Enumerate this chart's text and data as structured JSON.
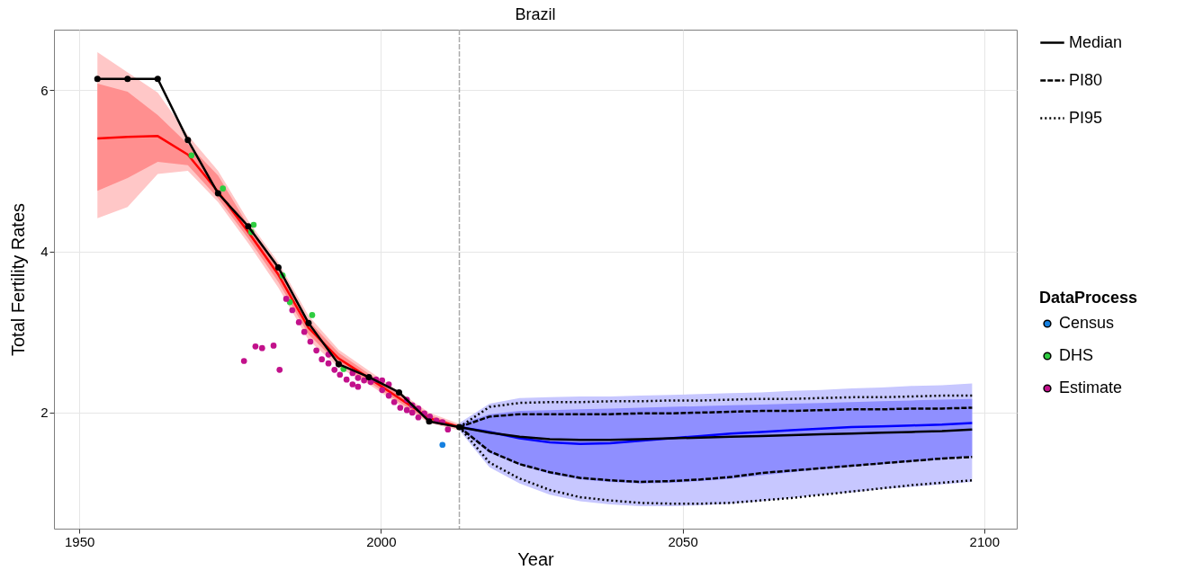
{
  "chart_data": {
    "type": "line",
    "title": "Brazil",
    "xlabel": "Year",
    "ylabel": "Total Fertility Rates",
    "legend_title": "DataProcess",
    "xlim": [
      1945.8,
      2105.4
    ],
    "xticks": [
      1950,
      2000,
      2050,
      2100
    ],
    "ylim": [
      0.56,
      6.75
    ],
    "yticks": [
      2,
      4,
      6
    ],
    "grid": true,
    "legend": "right",
    "ref_lines": [
      {
        "axis": "x",
        "value": 2013,
        "color": "#aaaaaa",
        "line_style": "dashed"
      }
    ],
    "series": [
      {
        "color": "#ff0000",
        "x": [
          1953,
          1958,
          1963,
          1968,
          1973,
          1978,
          1983,
          1988,
          1993,
          1998,
          2003,
          2008,
          2013
        ],
        "values": [
          null,
          null,
          null,
          null,
          null,
          null,
          null,
          null,
          null,
          null,
          null,
          null,
          null
        ],
        "lower": [
          4.41,
          4.55,
          4.96,
          5.0,
          4.61,
          4.1,
          3.55,
          2.9,
          2.56,
          2.35,
          2.1,
          1.87,
          1.78
        ],
        "upper": [
          6.47,
          6.22,
          5.97,
          5.44,
          5.0,
          4.38,
          3.86,
          3.2,
          2.78,
          2.52,
          2.26,
          2.0,
          1.86
        ]
      },
      {
        "color": "#ff0000",
        "x": [
          1953,
          1958,
          1963,
          1968,
          1973,
          1978,
          1983,
          1988,
          1993,
          1998,
          2003,
          2008,
          2013
        ],
        "values": [
          5.4,
          5.42,
          5.43,
          5.2,
          4.74,
          4.24,
          3.71,
          3.05,
          2.67,
          2.43,
          2.18,
          1.93,
          1.82
        ],
        "lower": [
          4.75,
          4.91,
          5.11,
          5.07,
          4.66,
          4.16,
          3.62,
          2.97,
          2.6,
          2.38,
          2.13,
          1.89,
          1.8
        ],
        "upper": [
          6.08,
          5.98,
          5.69,
          5.33,
          4.94,
          4.32,
          3.79,
          3.14,
          2.74,
          2.48,
          2.23,
          1.97,
          1.84
        ]
      },
      {
        "color": "#0000ff",
        "x": [
          2013,
          2018,
          2023,
          2028,
          2033,
          2038,
          2043,
          2048,
          2053,
          2058,
          2063,
          2068,
          2073,
          2078,
          2083,
          2088,
          2093,
          2098
        ],
        "values": [
          null,
          null,
          null,
          null,
          null,
          null,
          null,
          null,
          null,
          null,
          null,
          null,
          null,
          null,
          null,
          null,
          null,
          null
        ],
        "lower": [
          1.78,
          1.32,
          1.12,
          0.98,
          0.9,
          0.86,
          0.84,
          0.84,
          0.85,
          0.87,
          0.9,
          0.94,
          0.98,
          1.01,
          1.05,
          1.08,
          1.11,
          1.14
        ],
        "upper": [
          1.87,
          2.11,
          2.18,
          2.19,
          2.2,
          2.2,
          2.21,
          2.22,
          2.23,
          2.24,
          2.25,
          2.27,
          2.28,
          2.3,
          2.31,
          2.33,
          2.34,
          2.36
        ]
      },
      {
        "color": "#0000ff",
        "x": [
          2013,
          2018,
          2023,
          2028,
          2033,
          2038,
          2043,
          2048,
          2053,
          2058,
          2063,
          2068,
          2073,
          2078,
          2083,
          2088,
          2093,
          2098
        ],
        "values": [
          1.82,
          1.76,
          1.68,
          1.63,
          1.61,
          1.62,
          1.65,
          1.68,
          1.71,
          1.74,
          1.76,
          1.78,
          1.8,
          1.82,
          1.83,
          1.84,
          1.85,
          1.87
        ],
        "lower": [
          1.8,
          1.5,
          1.35,
          1.24,
          1.17,
          1.14,
          1.12,
          1.13,
          1.15,
          1.18,
          1.22,
          1.26,
          1.3,
          1.33,
          1.36,
          1.39,
          1.42,
          1.46
        ],
        "upper": [
          1.85,
          1.98,
          2.02,
          2.03,
          2.04,
          2.05,
          2.06,
          2.07,
          2.08,
          2.09,
          2.1,
          2.11,
          2.12,
          2.13,
          2.14,
          2.15,
          2.16,
          2.17
        ]
      },
      {
        "type": "scatter",
        "name": "Census",
        "color": "#1580e0",
        "x": [
          2010.2
        ],
        "values": [
          1.6
        ]
      },
      {
        "type": "scatter",
        "name": "DHS",
        "color": "#2ecc40",
        "x": [
          1968.6,
          1973.8,
          1978.9,
          1978.5,
          1983.7,
          1984.9,
          1988.6,
          1993.8
        ],
        "values": [
          5.19,
          4.78,
          4.33,
          4.24,
          3.7,
          3.37,
          3.21,
          2.54
        ]
      },
      {
        "type": "scatter",
        "name": "Estimate",
        "color": "#c2118b",
        "x": [
          1977.3,
          1979.2,
          1980.3,
          1982.2,
          1983.2,
          1984.3,
          1985.3,
          1986.4,
          1987.3,
          1988.3,
          1989.3,
          1990.2,
          1991.3,
          1991.3,
          1992.3,
          1993.2,
          1994.3,
          1995.3,
          1996.2,
          1995.3,
          1996.2,
          1997.2,
          1998.3,
          1999.2,
          2000.2,
          2001.3,
          2000.2,
          2001.3,
          2002.2,
          2003.2,
          2004.3,
          2004.3,
          2005.2,
          2005.2,
          2006.2,
          2006.2,
          2007.2,
          2008.1,
          2009.2,
          2010.2,
          2011.1
        ],
        "values": [
          2.64,
          2.82,
          2.8,
          2.83,
          2.53,
          3.41,
          3.27,
          3.12,
          3.0,
          2.88,
          2.77,
          2.66,
          2.72,
          2.61,
          2.53,
          2.47,
          2.41,
          2.35,
          2.32,
          2.49,
          2.43,
          2.4,
          2.38,
          2.41,
          2.4,
          2.35,
          2.28,
          2.21,
          2.13,
          2.06,
          2.16,
          2.03,
          2.09,
          2.0,
          2.05,
          1.94,
          1.99,
          1.95,
          1.9,
          1.88,
          1.79
        ]
      },
      {
        "color": "#000000",
        "marker": "circle",
        "x": [
          1953,
          1958,
          1963,
          1968,
          1973,
          1978,
          1983,
          1988,
          1993,
          1998,
          2003,
          2008,
          2013
        ],
        "values": [
          6.14,
          6.14,
          6.14,
          5.38,
          4.72,
          4.31,
          3.8,
          3.11,
          2.6,
          2.44,
          2.25,
          1.89,
          1.82
        ]
      },
      {
        "name": "Median",
        "color": "#000000",
        "line_style": "solid",
        "x": [
          2013,
          2018,
          2023,
          2028,
          2033,
          2038,
          2043,
          2048,
          2053,
          2058,
          2063,
          2068,
          2073,
          2078,
          2083,
          2088,
          2093,
          2098
        ],
        "values": [
          1.82,
          1.75,
          1.7,
          1.67,
          1.66,
          1.66,
          1.67,
          1.68,
          1.69,
          1.7,
          1.71,
          1.72,
          1.73,
          1.74,
          1.75,
          1.76,
          1.77,
          1.79
        ]
      },
      {
        "name": "PI80",
        "color": "#000000",
        "line_style": "dashed",
        "x": [
          2013,
          2018,
          2023,
          2028,
          2033,
          2038,
          2043,
          2048,
          2053,
          2058,
          2063,
          2068,
          2073,
          2078,
          2083,
          2088,
          2093,
          2098
        ],
        "values": [
          1.82,
          1.95,
          1.98,
          1.98,
          1.98,
          1.98,
          1.99,
          1.99,
          2.0,
          2.01,
          2.02,
          2.02,
          2.03,
          2.04,
          2.04,
          2.05,
          2.05,
          2.06
        ]
      },
      {
        "color": "#000000",
        "line_style": "dashed",
        "x": [
          2013,
          2018,
          2023,
          2028,
          2033,
          2038,
          2043,
          2048,
          2053,
          2058,
          2063,
          2068,
          2073,
          2078,
          2083,
          2088,
          2093,
          2098
        ],
        "values": [
          1.82,
          1.52,
          1.36,
          1.26,
          1.19,
          1.16,
          1.14,
          1.15,
          1.17,
          1.2,
          1.25,
          1.28,
          1.31,
          1.34,
          1.37,
          1.4,
          1.43,
          1.45
        ]
      },
      {
        "name": "PI95",
        "color": "#000000",
        "line_style": "dotted",
        "x": [
          2013,
          2018,
          2023,
          2028,
          2033,
          2038,
          2043,
          2048,
          2053,
          2058,
          2063,
          2068,
          2073,
          2078,
          2083,
          2088,
          2093,
          2098
        ],
        "values": [
          1.82,
          2.07,
          2.12,
          2.13,
          2.13,
          2.14,
          2.14,
          2.15,
          2.15,
          2.16,
          2.17,
          2.17,
          2.18,
          2.19,
          2.19,
          2.2,
          2.21,
          2.21
        ]
      },
      {
        "color": "#000000",
        "line_style": "dotted",
        "x": [
          2013,
          2018,
          2023,
          2028,
          2033,
          2038,
          2043,
          2048,
          2053,
          2058,
          2063,
          2068,
          2073,
          2078,
          2083,
          2088,
          2093,
          2098
        ],
        "values": [
          1.82,
          1.38,
          1.18,
          1.04,
          0.95,
          0.91,
          0.88,
          0.87,
          0.87,
          0.88,
          0.91,
          0.94,
          0.98,
          1.02,
          1.06,
          1.1,
          1.13,
          1.16
        ]
      }
    ]
  }
}
